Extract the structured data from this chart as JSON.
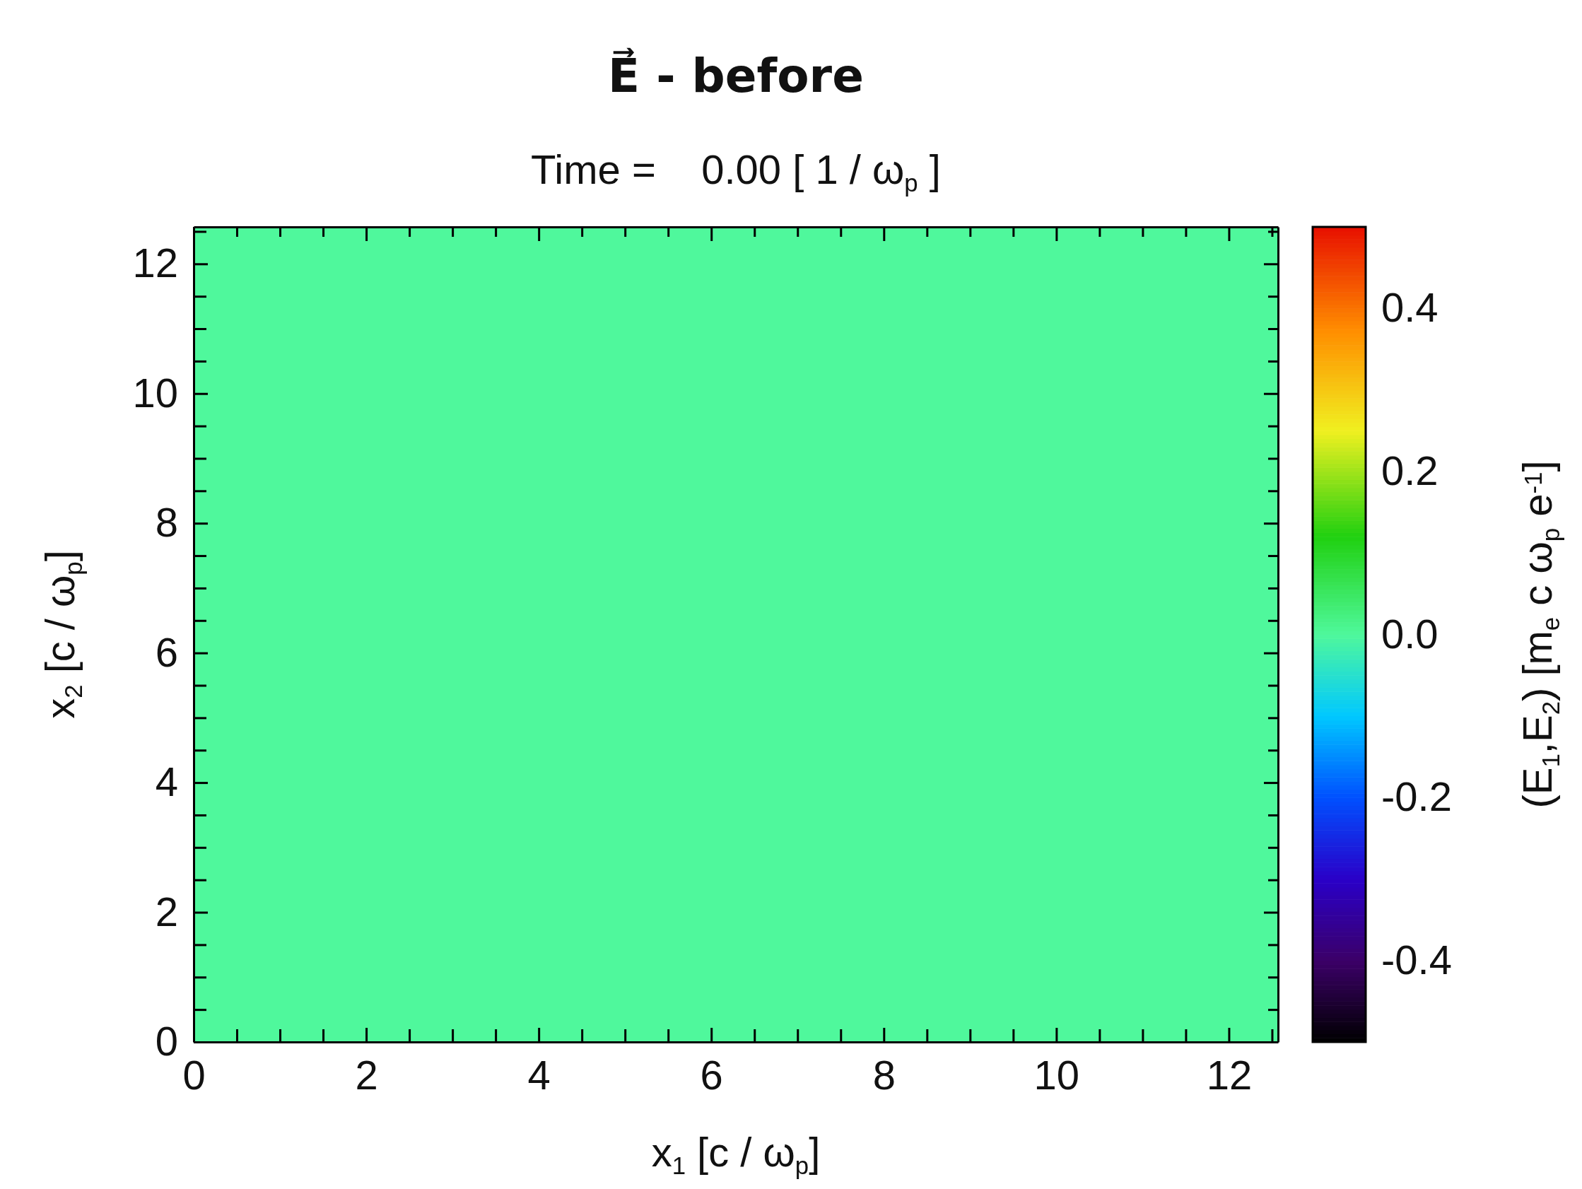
{
  "chart_data": {
    "type": "heatmap",
    "title": "E⃗ - before",
    "subtitle": "Time =    0.00 [ 1 / ω$_{p}$ ]",
    "xlabel": "x$_{1}$ [c / ω$_{p}$]",
    "ylabel": "x$_{2}$ [c / ω$_{p}$]",
    "clabel": "(E$_{1}$,E$_{2}$) [m$_{e}$ c ω$_{p}$ e$^{-1}$]",
    "cells": [
      [
        0.0
      ]
    ],
    "xlim": [
      0,
      12.57
    ],
    "ylim": [
      0,
      12.57
    ],
    "xticks": [
      0,
      {
        "value": 0.5,
        "label": null
      },
      {
        "value": 1,
        "label": null
      },
      {
        "value": 1.5,
        "label": null
      },
      2,
      {
        "value": 2.5,
        "label": null
      },
      {
        "value": 3,
        "label": null
      },
      {
        "value": 3.5,
        "label": null
      },
      4,
      {
        "value": 4.5,
        "label": null
      },
      {
        "value": 5,
        "label": null
      },
      {
        "value": 5.5,
        "label": null
      },
      6,
      {
        "value": 6.5,
        "label": null
      },
      {
        "value": 7,
        "label": null
      },
      {
        "value": 7.5,
        "label": null
      },
      8,
      {
        "value": 8.5,
        "label": null
      },
      {
        "value": 9,
        "label": null
      },
      {
        "value": 9.5,
        "label": null
      },
      10,
      {
        "value": 10.5,
        "label": null
      },
      {
        "value": 11,
        "label": null
      },
      {
        "value": 11.5,
        "label": null
      },
      12,
      {
        "value": 12.5,
        "label": null
      }
    ],
    "yticks": [
      0,
      {
        "value": 0.5,
        "label": null
      },
      {
        "value": 1,
        "label": null
      },
      {
        "value": 1.5,
        "label": null
      },
      2,
      {
        "value": 2.5,
        "label": null
      },
      {
        "value": 3,
        "label": null
      },
      {
        "value": 3.5,
        "label": null
      },
      4,
      {
        "value": 4.5,
        "label": null
      },
      {
        "value": 5,
        "label": null
      },
      {
        "value": 5.5,
        "label": null
      },
      6,
      {
        "value": 6.5,
        "label": null
      },
      {
        "value": 7,
        "label": null
      },
      {
        "value": 7.5,
        "label": null
      },
      8,
      {
        "value": 8.5,
        "label": null
      },
      {
        "value": 9,
        "label": null
      },
      {
        "value": 9.5,
        "label": null
      },
      10,
      {
        "value": 10.5,
        "label": null
      },
      {
        "value": 11,
        "label": null
      },
      {
        "value": 11.5,
        "label": null
      },
      12,
      {
        "value": 12.5,
        "label": null
      }
    ],
    "clim": [
      -0.5,
      0.5
    ],
    "cticks": [
      -0.4,
      -0.2,
      {
        "value": 0,
        "label": "0.0"
      },
      0.2,
      0.4
    ]
  }
}
